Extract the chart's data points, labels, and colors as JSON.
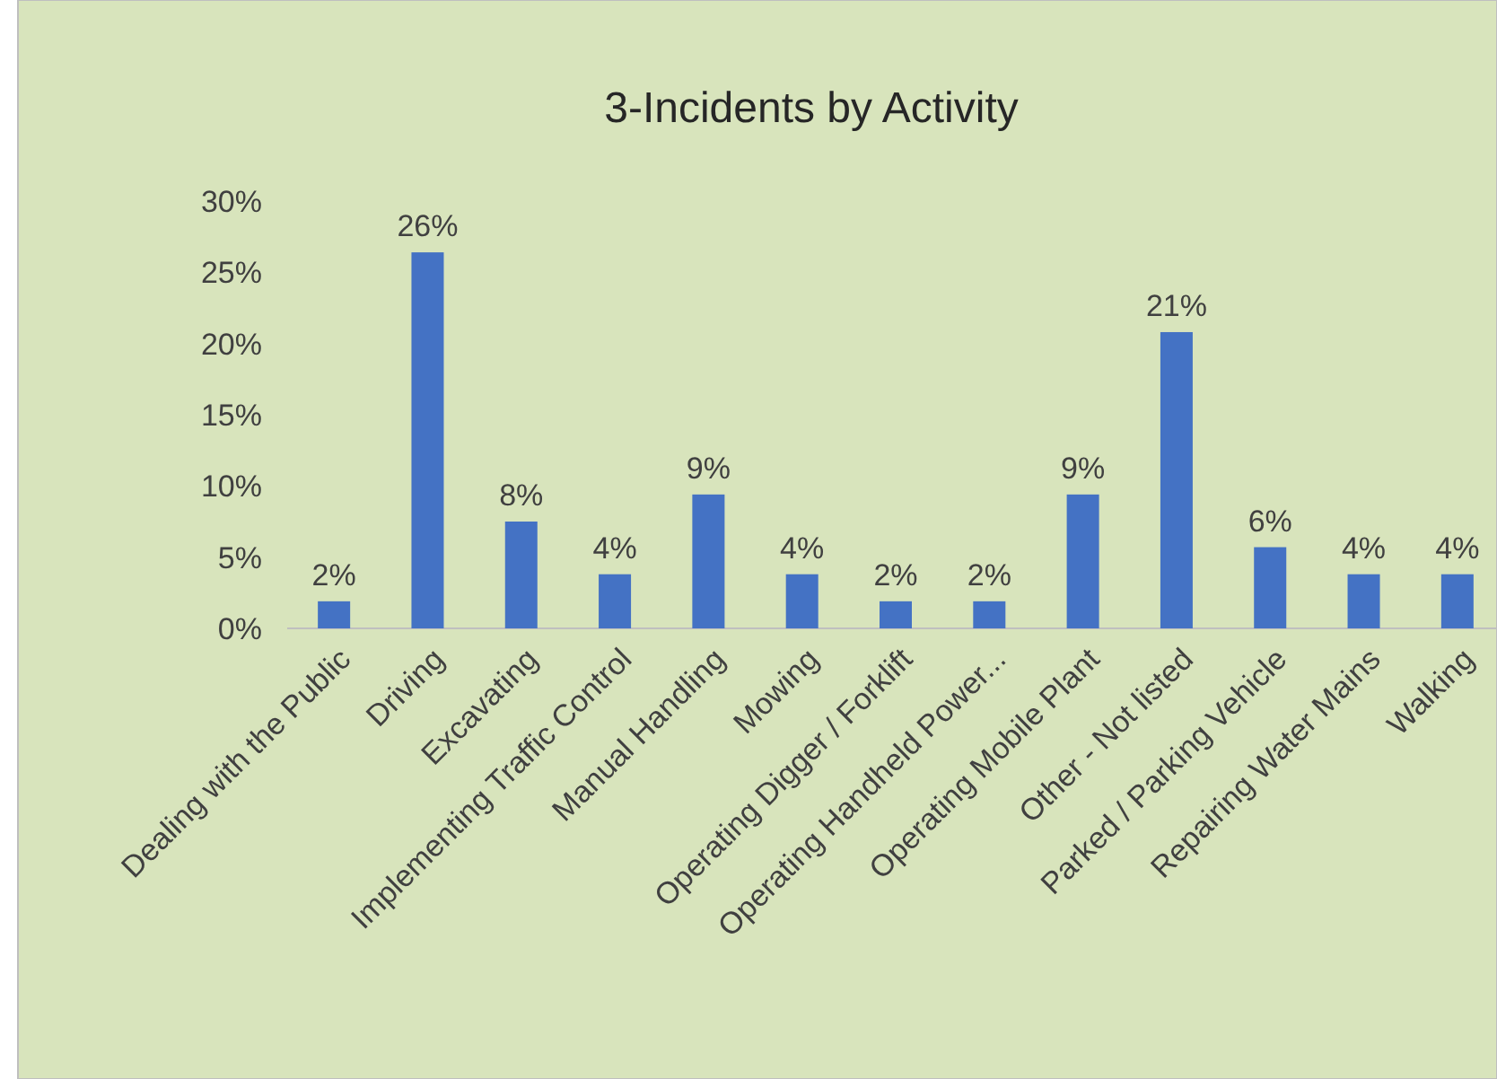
{
  "chart_data": {
    "type": "bar",
    "title": "3-Incidents by Activity",
    "categories": [
      "Dealing with the Public",
      "Driving",
      "Excavating",
      "Implementing Traffic Control",
      "Manual Handling",
      "Mowing",
      "Operating Digger / Forklift",
      "Operating Handheld Power...",
      "Operating Mobile Plant",
      "Other - Not listed",
      "Parked / Parking Vehicle",
      "Repairing Water Mains",
      "Walking"
    ],
    "values": [
      1.9,
      26.4,
      7.5,
      3.8,
      9.4,
      3.8,
      1.9,
      1.9,
      9.4,
      20.8,
      5.7,
      3.8,
      3.8
    ],
    "value_labels": [
      "2%",
      "26%",
      "8%",
      "4%",
      "9%",
      "4%",
      "2%",
      "2%",
      "9%",
      "21%",
      "6%",
      "4%",
      "4%"
    ],
    "color": "#4472c4",
    "ylim": [
      0,
      30
    ],
    "yticks": [
      {
        "value": 0,
        "label": "0%"
      },
      {
        "value": 5,
        "label": "5%"
      },
      {
        "value": 10,
        "label": "10%"
      },
      {
        "value": 15,
        "label": "15%"
      },
      {
        "value": 20,
        "label": "20%"
      },
      {
        "value": 25,
        "label": "25%"
      },
      {
        "value": 30,
        "label": "30%"
      }
    ]
  }
}
